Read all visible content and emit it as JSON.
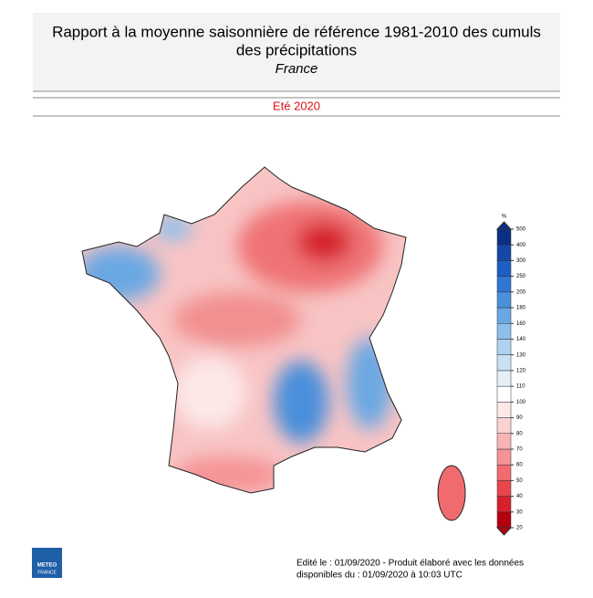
{
  "header": {
    "title_line1": "Rapport à la moyenne saisonnière de référence 1981-2010 des cumuls",
    "title_line2": "des précipitations",
    "subtitle": "France",
    "period": "Eté 2020"
  },
  "legend": {
    "unit": "%",
    "levels": [
      20,
      30,
      40,
      50,
      60,
      70,
      80,
      90,
      100,
      110,
      120,
      130,
      140,
      160,
      180,
      200,
      250,
      300,
      400,
      500
    ],
    "colors": [
      "#b3000f",
      "#d7202c",
      "#e8454c",
      "#f06b6e",
      "#f59395",
      "#f8b4b4",
      "#fbd2d2",
      "#fde8e8",
      "#ffffff",
      "#e4eff8",
      "#c9e1f3",
      "#aed2ef",
      "#8dbfea",
      "#6aa8e3",
      "#4a8fdb",
      "#2f77d2",
      "#1e5fc4",
      "#1547a8",
      "#0b2f84"
    ]
  },
  "footer": {
    "line1": "Edité le : 01/09/2020 - Produit élaboré avec les données",
    "line2": "disponibles du : 01/09/2020 à 10:03 UTC"
  },
  "logo": {
    "line1": "METEO",
    "line2": "FRANCE"
  }
}
